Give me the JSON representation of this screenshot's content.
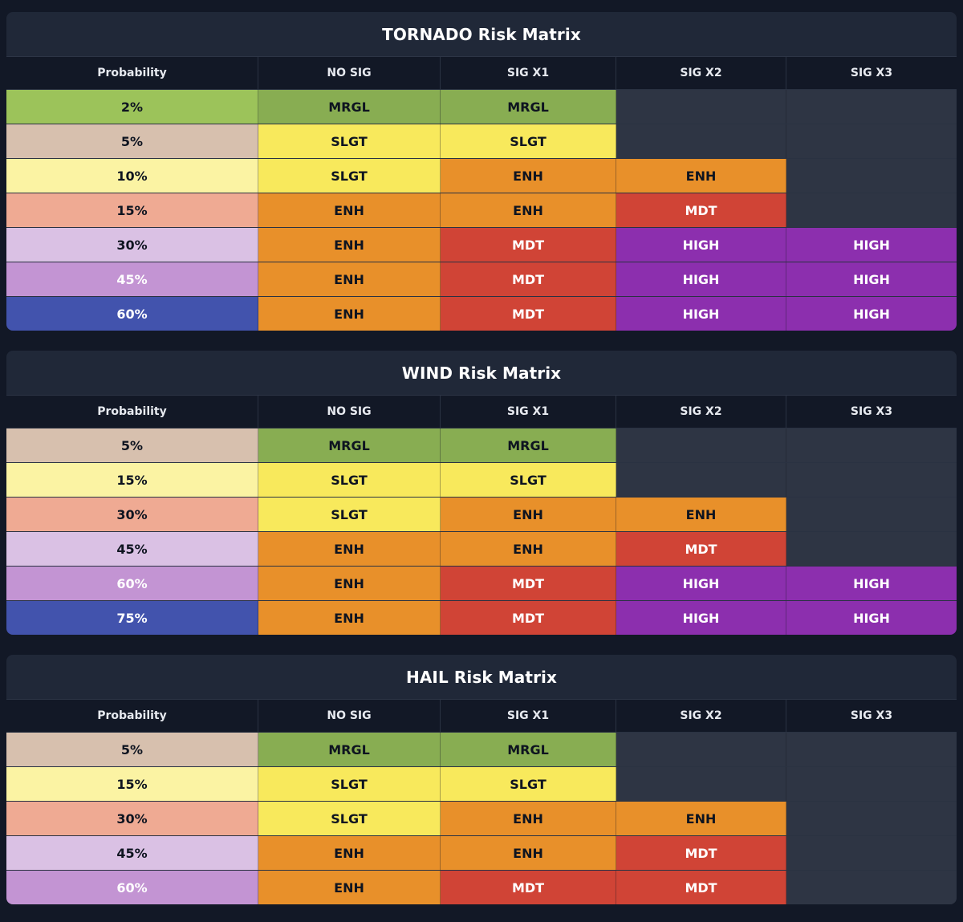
{
  "columns": [
    "Probability",
    "NO SIG",
    "SIG X1",
    "SIG X2",
    "SIG X3"
  ],
  "colors": {
    "MRGL": "#88ad52",
    "SLGT": "#f8e95c",
    "ENH": "#e8902a",
    "MDT": "#d04436",
    "HIGH": "#8c2fae",
    "empty": "#2e3544",
    "panel": "#202838",
    "header_row": "#121826",
    "background": "#121826"
  },
  "matrices": [
    {
      "title": "TORNADO Risk Matrix",
      "rows": [
        {
          "probability": "2%",
          "prob_color": "#9cc35a",
          "prob_text": "#0e1420",
          "cells": [
            "MRGL",
            "MRGL",
            "",
            ""
          ]
        },
        {
          "probability": "5%",
          "prob_color": "#d7c0ae",
          "prob_text": "#0e1420",
          "cells": [
            "SLGT",
            "SLGT",
            "",
            ""
          ]
        },
        {
          "probability": "10%",
          "prob_color": "#fbf3a3",
          "prob_text": "#0e1420",
          "cells": [
            "SLGT",
            "ENH",
            "ENH",
            ""
          ]
        },
        {
          "probability": "15%",
          "prob_color": "#efaa93",
          "prob_text": "#0e1420",
          "cells": [
            "ENH",
            "ENH",
            "MDT",
            ""
          ]
        },
        {
          "probability": "30%",
          "prob_color": "#dac1e4",
          "prob_text": "#0e1420",
          "cells": [
            "ENH",
            "MDT",
            "HIGH",
            "HIGH"
          ]
        },
        {
          "probability": "45%",
          "prob_color": "#c394d3",
          "prob_text": "#ffffff",
          "cells": [
            "ENH",
            "MDT",
            "HIGH",
            "HIGH"
          ]
        },
        {
          "probability": "60%",
          "prob_color": "#4253ad",
          "prob_text": "#ffffff",
          "cells": [
            "ENH",
            "MDT",
            "HIGH",
            "HIGH"
          ]
        }
      ]
    },
    {
      "title": "WIND Risk Matrix",
      "rows": [
        {
          "probability": "5%",
          "prob_color": "#d7c0ae",
          "prob_text": "#0e1420",
          "cells": [
            "MRGL",
            "MRGL",
            "",
            ""
          ]
        },
        {
          "probability": "15%",
          "prob_color": "#fbf3a3",
          "prob_text": "#0e1420",
          "cells": [
            "SLGT",
            "SLGT",
            "",
            ""
          ]
        },
        {
          "probability": "30%",
          "prob_color": "#efaa93",
          "prob_text": "#0e1420",
          "cells": [
            "SLGT",
            "ENH",
            "ENH",
            ""
          ]
        },
        {
          "probability": "45%",
          "prob_color": "#dac1e4",
          "prob_text": "#0e1420",
          "cells": [
            "ENH",
            "ENH",
            "MDT",
            ""
          ]
        },
        {
          "probability": "60%",
          "prob_color": "#c394d3",
          "prob_text": "#ffffff",
          "cells": [
            "ENH",
            "MDT",
            "HIGH",
            "HIGH"
          ]
        },
        {
          "probability": "75%",
          "prob_color": "#4253ad",
          "prob_text": "#ffffff",
          "cells": [
            "ENH",
            "MDT",
            "HIGH",
            "HIGH"
          ]
        }
      ]
    },
    {
      "title": "HAIL Risk Matrix",
      "rows": [
        {
          "probability": "5%",
          "prob_color": "#d7c0ae",
          "prob_text": "#0e1420",
          "cells": [
            "MRGL",
            "MRGL",
            "",
            ""
          ]
        },
        {
          "probability": "15%",
          "prob_color": "#fbf3a3",
          "prob_text": "#0e1420",
          "cells": [
            "SLGT",
            "SLGT",
            "",
            ""
          ]
        },
        {
          "probability": "30%",
          "prob_color": "#efaa93",
          "prob_text": "#0e1420",
          "cells": [
            "SLGT",
            "ENH",
            "ENH",
            ""
          ]
        },
        {
          "probability": "45%",
          "prob_color": "#dac1e4",
          "prob_text": "#0e1420",
          "cells": [
            "ENH",
            "ENH",
            "MDT",
            ""
          ]
        },
        {
          "probability": "60%",
          "prob_color": "#c394d3",
          "prob_text": "#ffffff",
          "cells": [
            "ENH",
            "MDT",
            "MDT",
            ""
          ]
        }
      ]
    }
  ]
}
